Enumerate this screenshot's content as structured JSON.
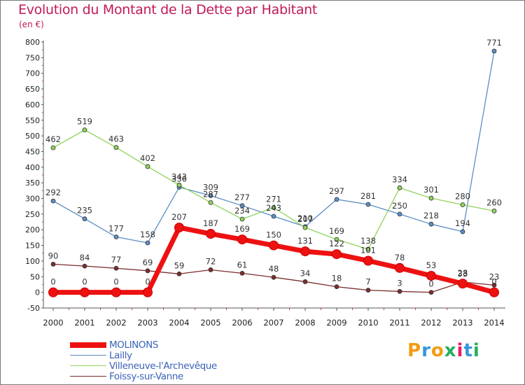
{
  "title": "Evolution du Montant de la Dette par Habitant",
  "unit": "(en €)",
  "logo": {
    "text": "Proxiti",
    "letter_colors": [
      "#f39c12",
      "#3498db",
      "#f39c12",
      "#27ae60",
      "#e91e63",
      "#3498db",
      "#27ae60"
    ]
  },
  "chart_data": {
    "type": "line",
    "title": "Evolution du Montant de la Dette par Habitant",
    "ylabel": "(en €)",
    "xlabel": "",
    "x": [
      "2000",
      "2001",
      "2002",
      "2003",
      "2004",
      "2005",
      "2006",
      "2007",
      "2008",
      "2009",
      "2010",
      "2011",
      "2012",
      "2013",
      "2014"
    ],
    "ylim": [
      -50,
      800
    ],
    "yticks": [
      "-50",
      "0",
      "50",
      "100",
      "150",
      "200",
      "250",
      "300",
      "350",
      "400",
      "450",
      "500",
      "550",
      "600",
      "650",
      "700",
      "750",
      "800"
    ],
    "grid": false,
    "legend_position": "bottom-left",
    "series": [
      {
        "name": "Lailly",
        "color": "#5b8ec4",
        "values": [
          292,
          235,
          177,
          158,
          336,
          309,
          277,
          243,
          210,
          297,
          281,
          250,
          218,
          194,
          771
        ]
      },
      {
        "name": "Villeneuve-l'Archevêque",
        "color": "#8fd35c",
        "values": [
          462,
          519,
          463,
          402,
          343,
          287,
          234,
          271,
          207,
          169,
          138,
          334,
          301,
          280,
          260
        ]
      },
      {
        "name": "Foissy-sur-Vanne",
        "color": "#7b2d2d",
        "values": [
          90,
          84,
          77,
          69,
          59,
          72,
          61,
          48,
          34,
          18,
          7,
          3,
          0,
          33,
          23
        ]
      },
      {
        "name": "MOLINONS",
        "color": "#ee1111",
        "values": [
          0,
          0,
          0,
          0,
          207,
          187,
          169,
          150,
          131,
          122,
          101,
          78,
          53,
          28,
          0
        ]
      }
    ]
  }
}
